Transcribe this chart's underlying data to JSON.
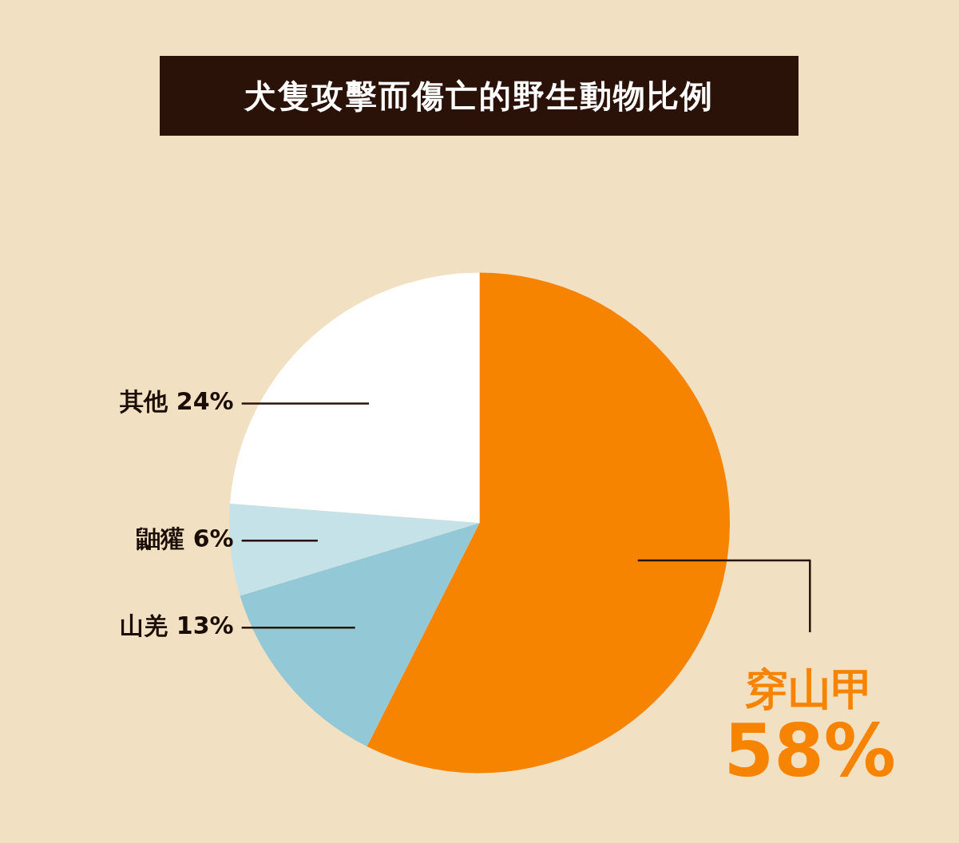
{
  "chart_data": {
    "type": "pie",
    "title": "犬隻攻擊而傷亡的野生動物比例",
    "categories": [
      "穿山甲",
      "山羌",
      "鼬獾",
      "其他"
    ],
    "values": [
      58,
      13,
      6,
      24
    ],
    "value_labels": [
      "58%",
      "13%",
      "6%",
      "24%"
    ],
    "colors": [
      "#f78400",
      "#93c8d6",
      "#c5e2e8",
      "#ffffff"
    ],
    "legend": false
  }
}
